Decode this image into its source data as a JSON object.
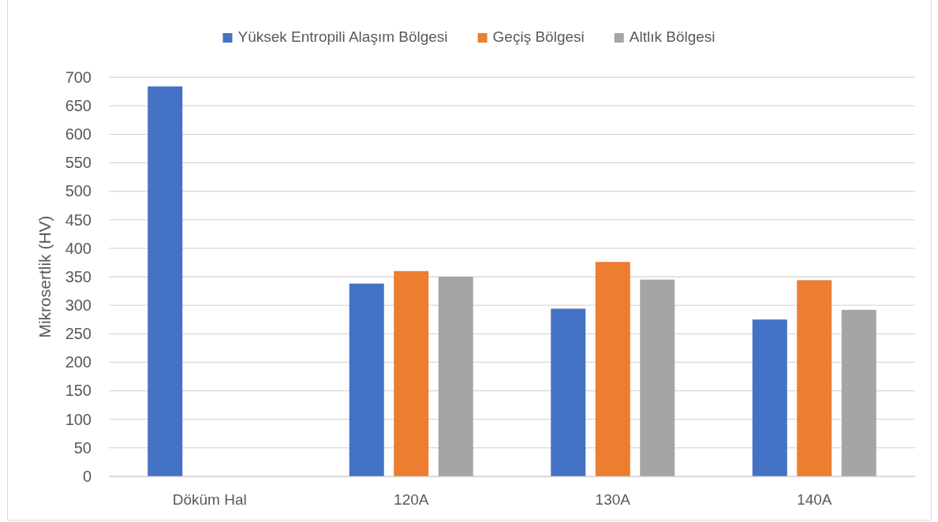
{
  "chart_data": {
    "type": "bar",
    "categories": [
      "Döküm Hal",
      "120A",
      "130A",
      "140A"
    ],
    "series": [
      {
        "name": "Yüksek Entropili Alaşım Bölgesi",
        "color": "#4472c4",
        "values": [
          684,
          338,
          294,
          275
        ]
      },
      {
        "name": "Geçiş Bölgesi",
        "color": "#ed7d31",
        "values": [
          null,
          360,
          376,
          344
        ]
      },
      {
        "name": "Altlık Bölgesi",
        "color": "#a5a5a5",
        "values": [
          null,
          350,
          345,
          292
        ]
      }
    ],
    "ylabel": "Mikrosertlik (HV)",
    "ylim": [
      0,
      700
    ],
    "yticks": [
      0,
      50,
      100,
      150,
      200,
      250,
      300,
      350,
      400,
      450,
      500,
      550,
      600,
      650,
      700
    ],
    "grid": "y",
    "legend": "top"
  }
}
